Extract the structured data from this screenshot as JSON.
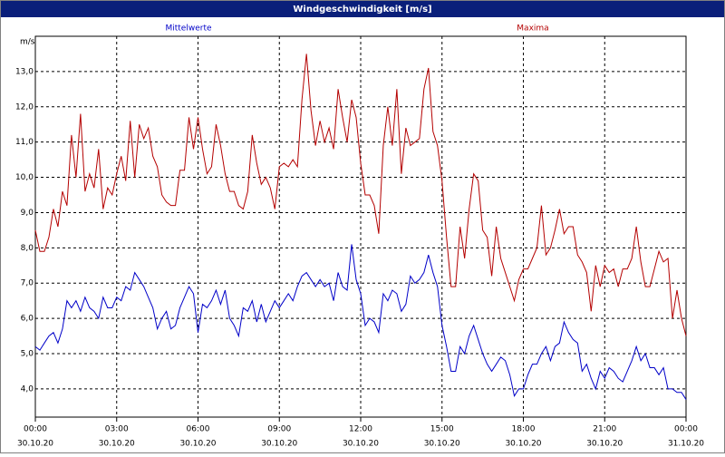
{
  "chart_data": {
    "type": "line",
    "title": "Windgeschwindigkeit [m/s]",
    "y_label": "m/s",
    "x": [
      0,
      10,
      20,
      30,
      40,
      50,
      60,
      70,
      80,
      90,
      100,
      110,
      120,
      130,
      140,
      150,
      160,
      170,
      180,
      190,
      200,
      210,
      220,
      230,
      240,
      250,
      260,
      270,
      280,
      290,
      300,
      310,
      320,
      330,
      340,
      350,
      360,
      370,
      380,
      390,
      400,
      410,
      420,
      430,
      440,
      450,
      460,
      470,
      480,
      490,
      500,
      510,
      520,
      530,
      540,
      550,
      560,
      570,
      580,
      590,
      600,
      610,
      620,
      630,
      640,
      650,
      660,
      670,
      680,
      690,
      700,
      710,
      720,
      730,
      740,
      750,
      760,
      770,
      780,
      790,
      800,
      810,
      820,
      830,
      840,
      850,
      860,
      870,
      880,
      890,
      900,
      910,
      920,
      930,
      940,
      950,
      960,
      970,
      980,
      990,
      1000,
      1010,
      1020,
      1030,
      1040,
      1050,
      1060,
      1070,
      1080,
      1090,
      1100,
      1110,
      1120,
      1130,
      1140,
      1150,
      1160,
      1170,
      1180,
      1190,
      1200,
      1210,
      1220,
      1230,
      1240,
      1250,
      1260,
      1270,
      1280,
      1290,
      1300,
      1310,
      1320,
      1330,
      1340,
      1350,
      1360,
      1370,
      1380,
      1390,
      1400,
      1410,
      1420,
      1430,
      1440
    ],
    "series": [
      {
        "name": "Mittelwerte",
        "color": "#0000c8",
        "values": [
          5.2,
          5.1,
          5.3,
          5.5,
          5.6,
          5.3,
          5.7,
          6.5,
          6.3,
          6.5,
          6.2,
          6.6,
          6.3,
          6.2,
          6.0,
          6.6,
          6.3,
          6.3,
          6.6,
          6.5,
          6.9,
          6.8,
          7.3,
          7.1,
          6.9,
          6.6,
          6.3,
          5.7,
          6.0,
          6.2,
          5.7,
          5.8,
          6.3,
          6.6,
          6.9,
          6.7,
          5.6,
          6.4,
          6.3,
          6.5,
          6.8,
          6.4,
          6.8,
          6.0,
          5.8,
          5.5,
          6.3,
          6.2,
          6.5,
          5.9,
          6.4,
          5.9,
          6.2,
          6.5,
          6.3,
          6.5,
          6.7,
          6.5,
          6.9,
          7.2,
          7.3,
          7.1,
          6.9,
          7.1,
          6.9,
          7.0,
          6.5,
          7.3,
          6.9,
          6.8,
          8.1,
          7.1,
          6.7,
          5.8,
          6.0,
          5.9,
          5.6,
          6.7,
          6.5,
          6.8,
          6.7,
          6.2,
          6.4,
          7.2,
          7.0,
          7.1,
          7.3,
          7.8,
          7.3,
          6.9,
          5.8,
          5.2,
          4.5,
          4.5,
          5.2,
          5.0,
          5.5,
          5.8,
          5.4,
          5.0,
          4.7,
          4.5,
          4.7,
          4.9,
          4.8,
          4.4,
          3.8,
          4.0,
          4.0,
          4.4,
          4.7,
          4.7,
          5.0,
          5.2,
          4.8,
          5.2,
          5.3,
          5.9,
          5.6,
          5.4,
          5.3,
          4.5,
          4.7,
          4.3,
          4.0,
          4.5,
          4.3,
          4.6,
          4.5,
          4.3,
          4.2,
          4.5,
          4.8,
          5.2,
          4.8,
          5.0,
          4.6,
          4.6,
          4.4,
          4.6,
          4.0,
          4.0,
          3.9,
          3.9,
          3.7
        ]
      },
      {
        "name": "Maxima",
        "color": "#b40000",
        "values": [
          8.5,
          7.9,
          7.9,
          8.3,
          9.1,
          8.6,
          9.6,
          9.2,
          11.2,
          10.0,
          11.8,
          9.6,
          10.1,
          9.7,
          10.8,
          9.1,
          9.7,
          9.5,
          10.1,
          10.6,
          9.9,
          11.6,
          10.0,
          11.5,
          11.1,
          11.4,
          10.6,
          10.3,
          9.5,
          9.3,
          9.2,
          9.2,
          10.2,
          10.2,
          11.7,
          10.8,
          11.7,
          10.8,
          10.1,
          10.3,
          11.5,
          10.9,
          10.1,
          9.6,
          9.6,
          9.2,
          9.1,
          9.6,
          11.2,
          10.4,
          9.8,
          10.0,
          9.7,
          9.1,
          10.3,
          10.4,
          10.3,
          10.5,
          10.3,
          12.2,
          13.5,
          11.9,
          10.9,
          11.6,
          11.0,
          11.4,
          10.8,
          12.5,
          11.7,
          11.0,
          12.2,
          11.7,
          10.4,
          9.5,
          9.5,
          9.2,
          8.4,
          10.9,
          12.0,
          10.9,
          12.5,
          10.1,
          11.4,
          10.9,
          11.0,
          11.1,
          12.5,
          13.1,
          11.3,
          10.9,
          9.9,
          8.3,
          6.9,
          6.9,
          8.6,
          7.7,
          9.1,
          10.1,
          9.9,
          8.5,
          8.3,
          7.2,
          8.6,
          7.7,
          7.3,
          6.9,
          6.5,
          7.1,
          7.4,
          7.4,
          7.7,
          8.0,
          9.2,
          7.8,
          8.0,
          8.5,
          9.1,
          8.4,
          8.6,
          8.6,
          7.8,
          7.6,
          7.3,
          6.2,
          7.5,
          6.9,
          7.5,
          7.3,
          7.4,
          6.9,
          7.4,
          7.4,
          7.7,
          8.6,
          7.6,
          6.9,
          6.9,
          7.4,
          7.9,
          7.6,
          7.7,
          6.0,
          6.8,
          6.0,
          5.5
        ]
      }
    ],
    "xlim": [
      0,
      1440
    ],
    "xticks": [
      {
        "value": 0,
        "label": "00:00",
        "date": "30.10.20"
      },
      {
        "value": 180,
        "label": "03:00",
        "date": "30.10.20"
      },
      {
        "value": 360,
        "label": "06:00",
        "date": "30.10.20"
      },
      {
        "value": 540,
        "label": "09:00",
        "date": "30.10.20"
      },
      {
        "value": 720,
        "label": "12:00",
        "date": "30.10.20"
      },
      {
        "value": 900,
        "label": "15:00",
        "date": "30.10.20"
      },
      {
        "value": 1080,
        "label": "18:00",
        "date": "30.10.20"
      },
      {
        "value": 1260,
        "label": "21:00",
        "date": "30.10.20"
      },
      {
        "value": 1440,
        "label": "00:00",
        "date": "31.10.20"
      }
    ],
    "ylim": [
      3.2,
      14.0
    ],
    "yticks": [
      {
        "value": 4,
        "label": "4,0"
      },
      {
        "value": 5,
        "label": "5,0"
      },
      {
        "value": 6,
        "label": "6,0"
      },
      {
        "value": 7,
        "label": "7,0"
      },
      {
        "value": 8,
        "label": "8,0"
      },
      {
        "value": 9,
        "label": "9,0"
      },
      {
        "value": 10,
        "label": "10,0"
      },
      {
        "value": 11,
        "label": "11,0"
      },
      {
        "value": 12,
        "label": "12,0"
      },
      {
        "value": 13,
        "label": "13,0"
      }
    ],
    "grid": true
  }
}
